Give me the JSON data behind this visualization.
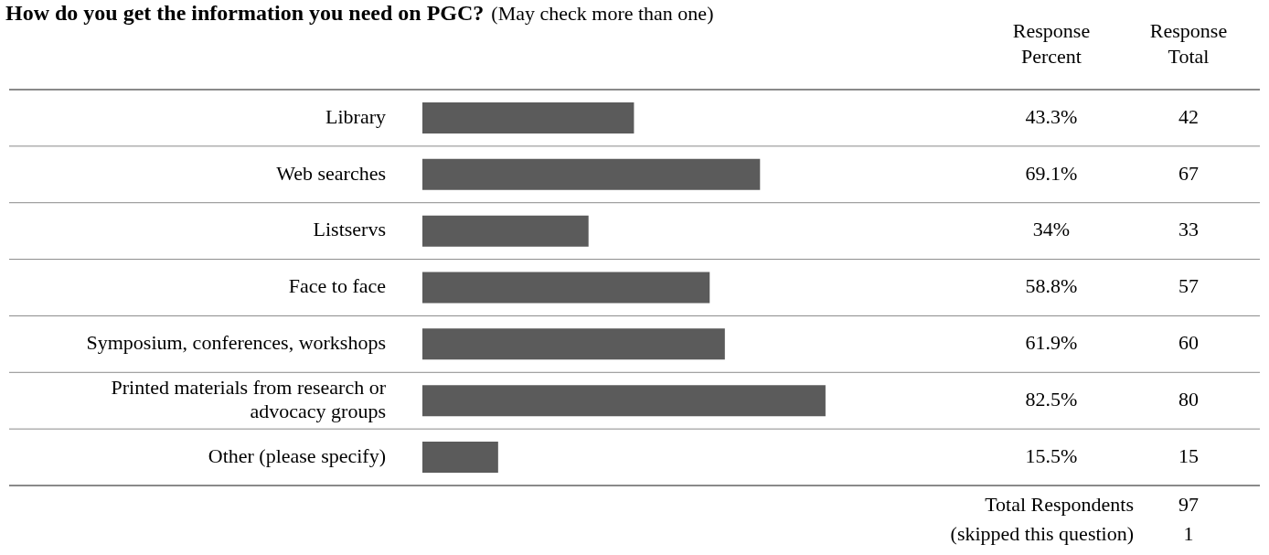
{
  "chart_data": {
    "type": "bar",
    "orientation": "horizontal",
    "title": "How do you get the information you need on PGC?",
    "subtitle": "(May check more than one)",
    "categories": [
      "Library",
      "Web searches",
      "Listservs",
      "Face to face",
      "Symposium, conferences, workshops",
      "Printed materials from research or advocacy groups",
      "Other (please specify)"
    ],
    "values": [
      43.3,
      69.1,
      34,
      58.8,
      61.9,
      82.5,
      15.5
    ],
    "color": "#5b5b5b",
    "value_labels": [
      "43.3%",
      "69.1%",
      "34%",
      "58.8%",
      "61.9%",
      "82.5%",
      "15.5%"
    ],
    "tick_labels": "y",
    "legend": false,
    "grid": false,
    "annotations": [
      "Response Percent",
      "Response Total",
      "42",
      "67",
      "33",
      "57",
      "60",
      "80",
      "15",
      "Total Respondents",
      "97",
      "(skipped this question)",
      "1"
    ]
  }
}
